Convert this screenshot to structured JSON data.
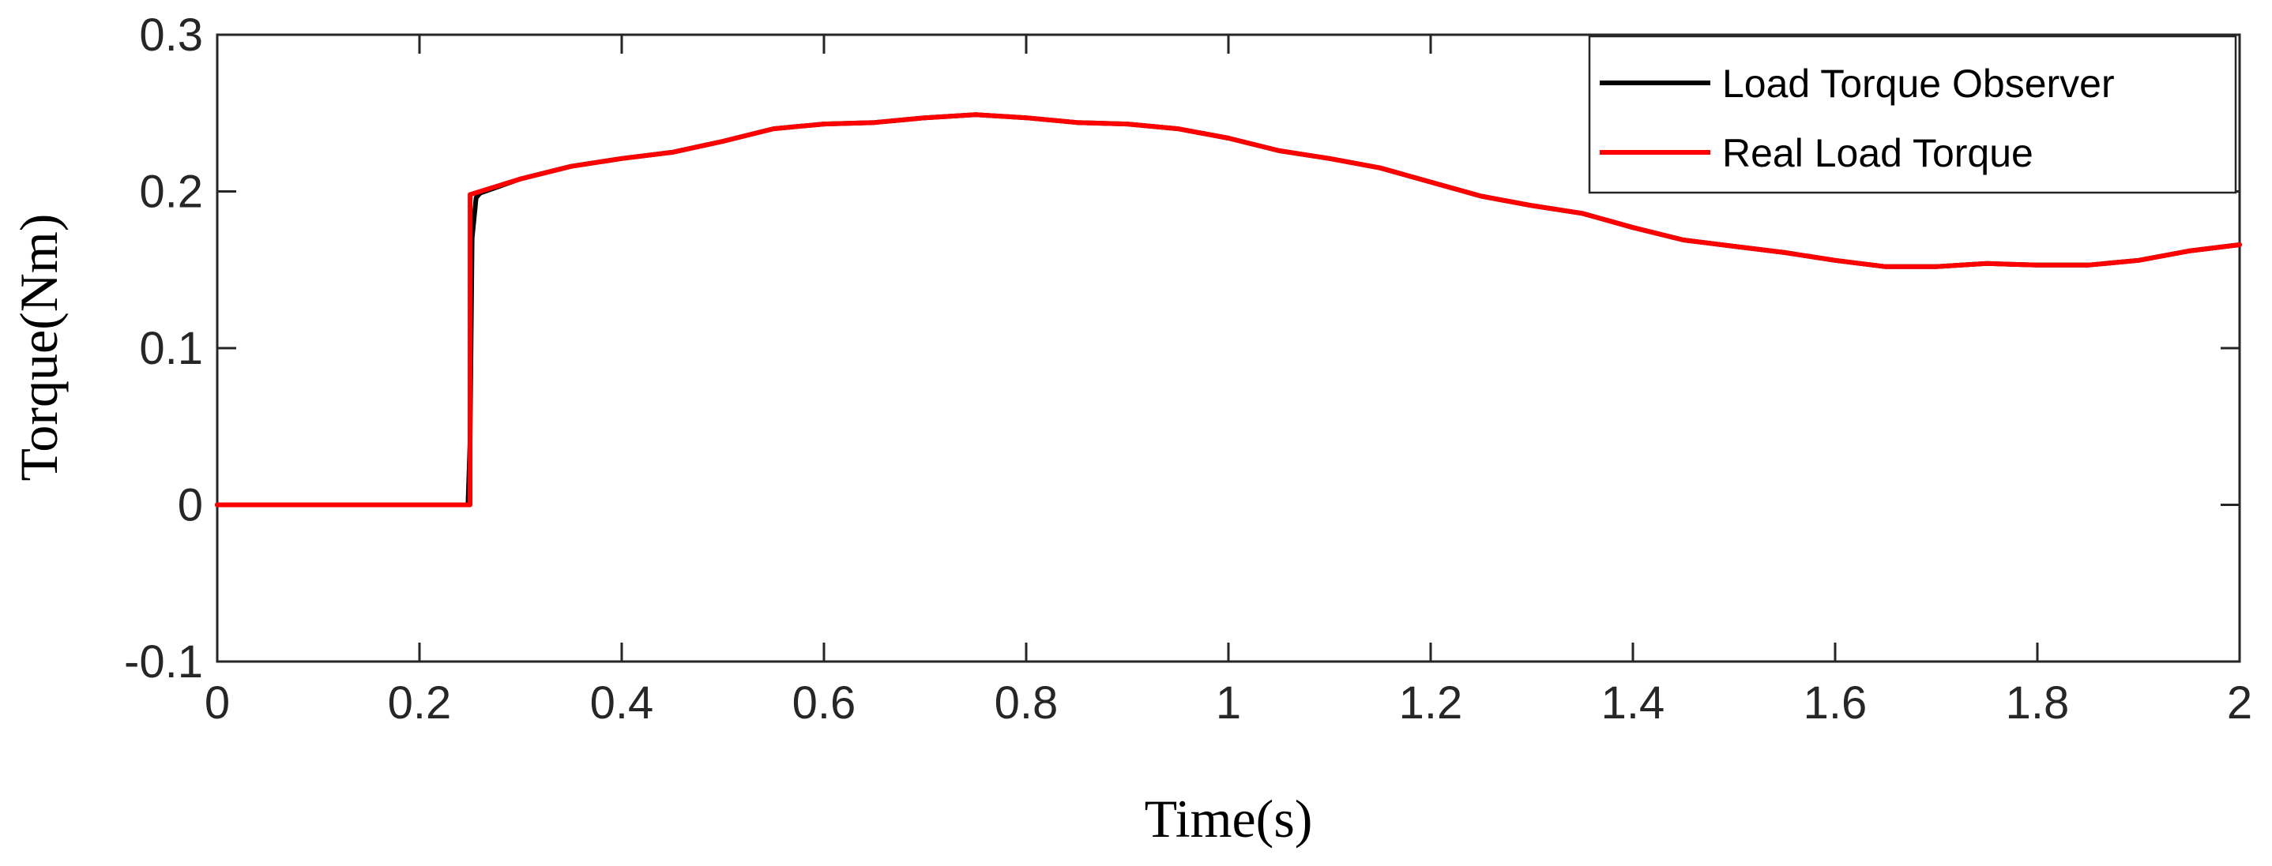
{
  "chart_data": {
    "type": "line",
    "xlabel": "Time(s)",
    "ylabel": "Torque(Nm)",
    "xlim": [
      0,
      2
    ],
    "ylim": [
      -0.1,
      0.3
    ],
    "x_ticks": [
      0,
      0.2,
      0.4,
      0.6,
      0.8,
      1,
      1.2,
      1.4,
      1.6,
      1.8,
      2
    ],
    "x_tick_labels": [
      "0",
      "0.2",
      "0.4",
      "0.6",
      "0.8",
      "1",
      "1.2",
      "1.4",
      "1.6",
      "1.8",
      "2"
    ],
    "y_ticks": [
      -0.1,
      0,
      0.1,
      0.2,
      0.3
    ],
    "y_tick_labels": [
      "-0.1",
      "0",
      "0.1",
      "0.2",
      "0.3"
    ],
    "grid": false,
    "legend_position": "top-right",
    "series": [
      {
        "name": "Load Torque Observer",
        "color": "#000000",
        "x": [
          0,
          0.248,
          0.25,
          0.252,
          0.256,
          0.26,
          0.3,
          0.35,
          0.4,
          0.45,
          0.5,
          0.55,
          0.6,
          0.65,
          0.7,
          0.75,
          0.8,
          0.85,
          0.9,
          0.95,
          1.0,
          1.05,
          1.1,
          1.15,
          1.2,
          1.25,
          1.3,
          1.35,
          1.4,
          1.45,
          1.5,
          1.55,
          1.6,
          1.65,
          1.7,
          1.75,
          1.8,
          1.85,
          1.9,
          1.95,
          2.0
        ],
        "y": [
          0,
          0,
          0.04,
          0.17,
          0.196,
          0.199,
          0.208,
          0.216,
          0.221,
          0.225,
          0.232,
          0.24,
          0.243,
          0.244,
          0.247,
          0.249,
          0.247,
          0.244,
          0.243,
          0.24,
          0.234,
          0.226,
          0.221,
          0.215,
          0.206,
          0.197,
          0.191,
          0.186,
          0.177,
          0.169,
          0.165,
          0.161,
          0.156,
          0.152,
          0.152,
          0.154,
          0.153,
          0.153,
          0.156,
          0.162,
          0.166
        ]
      },
      {
        "name": "Real Load Torque",
        "color": "#ff0000",
        "x": [
          0,
          0.25,
          0.2501,
          0.26,
          0.3,
          0.35,
          0.4,
          0.45,
          0.5,
          0.55,
          0.6,
          0.65,
          0.7,
          0.75,
          0.8,
          0.85,
          0.9,
          0.95,
          1.0,
          1.05,
          1.1,
          1.15,
          1.2,
          1.25,
          1.3,
          1.35,
          1.4,
          1.45,
          1.5,
          1.55,
          1.6,
          1.65,
          1.7,
          1.75,
          1.8,
          1.85,
          1.9,
          1.95,
          2.0
        ],
        "y": [
          0,
          0,
          0.198,
          0.2,
          0.208,
          0.216,
          0.221,
          0.225,
          0.232,
          0.24,
          0.243,
          0.244,
          0.247,
          0.249,
          0.247,
          0.244,
          0.243,
          0.24,
          0.234,
          0.226,
          0.221,
          0.215,
          0.206,
          0.197,
          0.191,
          0.186,
          0.177,
          0.169,
          0.165,
          0.161,
          0.156,
          0.152,
          0.152,
          0.154,
          0.153,
          0.153,
          0.156,
          0.162,
          0.166
        ]
      }
    ]
  }
}
